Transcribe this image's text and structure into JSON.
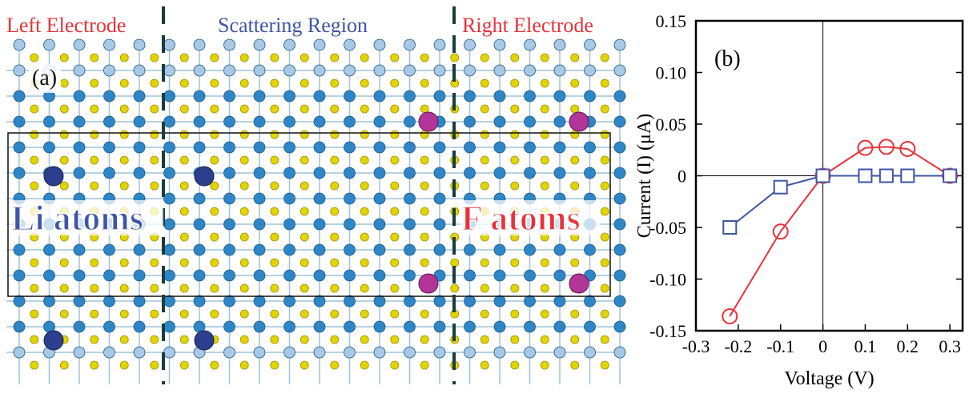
{
  "colors": {
    "electrode_label": "#e8323a",
    "scattering_label": "#3f55a5",
    "li_label": "#3f55a5",
    "f_label": "#e8323a",
    "s_atom": "#e2d400",
    "mo_atom": "#2f86c6",
    "li_atom": "#2c3f8e",
    "f_atom": "#b4359a",
    "red_series": "#e8323a",
    "blue_series": "#3f55a5"
  },
  "panel_a": {
    "panel_label": "(a)",
    "left_electrode": "Left Electrode",
    "scattering_region": "Scattering Region",
    "right_electrode": "Right Electrode",
    "li_label": "Li atoms",
    "f_label": "F atoms"
  },
  "chart_data": {
    "type": "line",
    "panel_label": "(b)",
    "xlabel": "Voltage (V)",
    "ylabel": "Current (I) (μA)",
    "xlim": [
      -0.3,
      0.33
    ],
    "ylim": [
      -0.15,
      0.15
    ],
    "xticks": [
      -0.3,
      -0.2,
      -0.1,
      0,
      0.1,
      0.2,
      0.3
    ],
    "xtick_labels": [
      "-0.3",
      "-0.2",
      "-0.1",
      "0",
      "0.1",
      "0.2",
      "0.3"
    ],
    "yticks": [
      -0.15,
      -0.1,
      -0.05,
      0,
      0.05,
      0.1,
      0.15
    ],
    "ytick_labels": [
      "-0.15",
      "-0.10",
      "-0.05",
      "0",
      "0.05",
      "0.10",
      "0.15"
    ],
    "zero_lines": true,
    "series": [
      {
        "marker": "circle",
        "color": "#e8323a",
        "x": [
          -0.22,
          -0.1,
          0,
          0.1,
          0.15,
          0.2,
          0.3
        ],
        "y": [
          -0.136,
          -0.054,
          0.0,
          0.027,
          0.028,
          0.026,
          0.0
        ]
      },
      {
        "marker": "square",
        "color": "#3f55a5",
        "x": [
          -0.22,
          -0.1,
          0,
          0.1,
          0.15,
          0.2,
          0.3
        ],
        "y": [
          -0.05,
          -0.011,
          0.0,
          0.0,
          0.0,
          0.0,
          0.0
        ]
      }
    ]
  }
}
